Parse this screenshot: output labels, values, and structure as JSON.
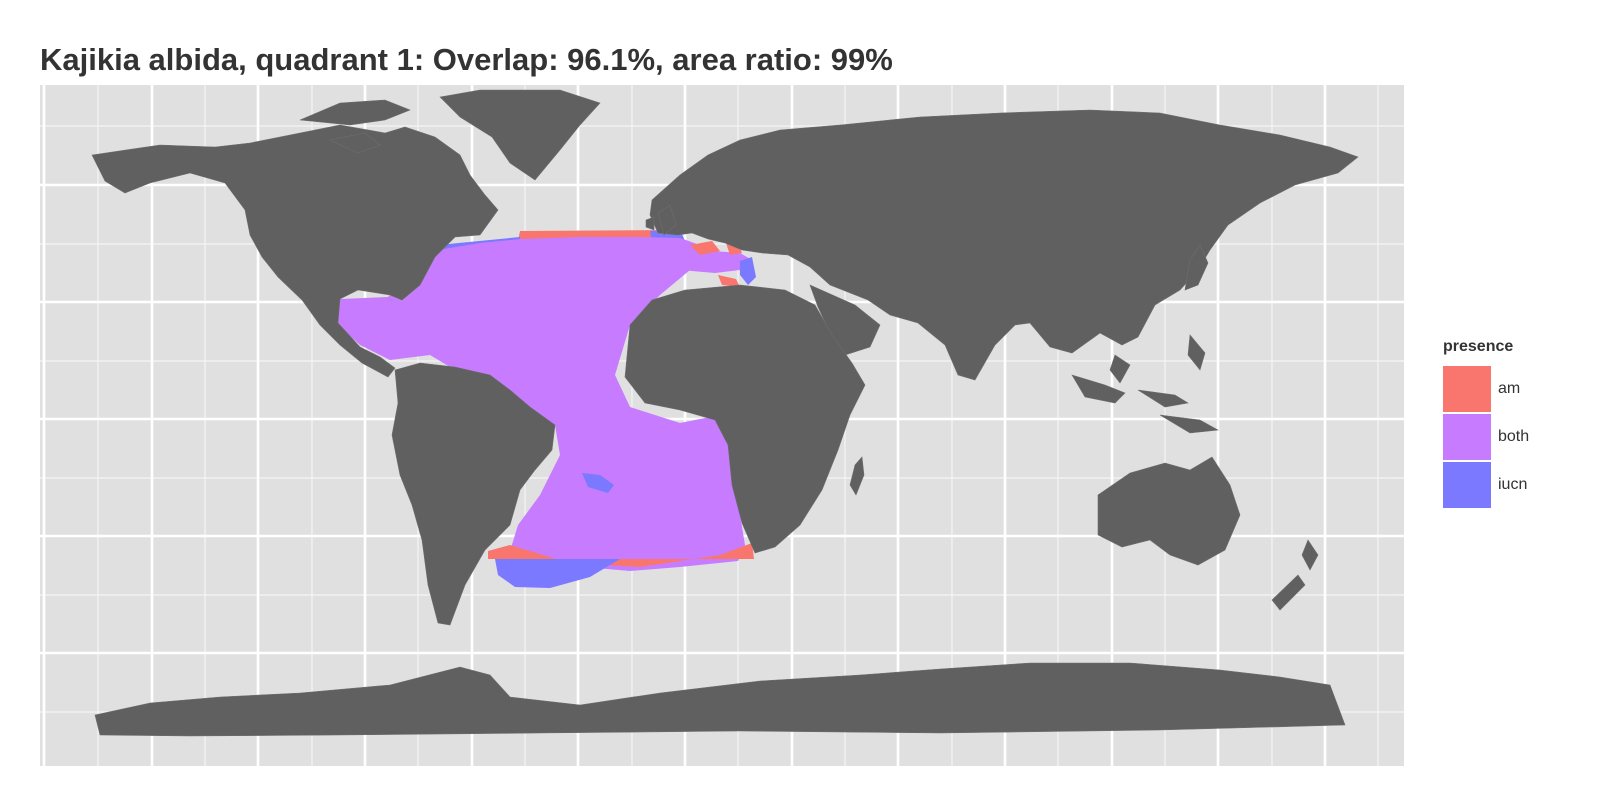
{
  "title": "Kajikia albida, quadrant 1: Overlap: 96.1%, area ratio: 99%",
  "colors": {
    "panel_background": "#e0e0e0",
    "grid": "#ffffff",
    "land": "#606060",
    "land_border": "#6e6e6e",
    "am": "#f8766d",
    "both": "#c77cff",
    "iucn": "#7a79ff"
  },
  "legend": {
    "title": "presence",
    "items": [
      {
        "label": "am",
        "color": "#f8766d"
      },
      {
        "label": "both",
        "color": "#c77cff"
      },
      {
        "label": "iucn",
        "color": "#7a79ff"
      }
    ]
  }
}
